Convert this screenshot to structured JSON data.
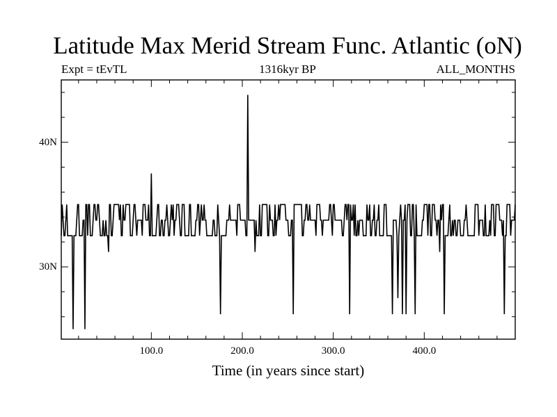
{
  "chart_data": {
    "type": "line",
    "title": "Latitude Max Merid Stream Func. Atlantic (oN)",
    "subtitle_left": "Expt = tEvTL",
    "subtitle_center": "1316kyr BP",
    "subtitle_right": "ALL_MONTHS",
    "xlabel": "Time (in years since start)",
    "ylabel": "",
    "xlim": [
      1,
      500
    ],
    "ylim": [
      24.2,
      45
    ],
    "x_ticks": [
      {
        "value": 100,
        "label": "100.0"
      },
      {
        "value": 200,
        "label": "200.0"
      },
      {
        "value": 300,
        "label": "300.0"
      },
      {
        "value": 400,
        "label": "400.0"
      }
    ],
    "x_minor_step": 20,
    "y_ticks": [
      {
        "value": 30,
        "label": "30N"
      },
      {
        "value": 40,
        "label": "40N"
      }
    ],
    "y_minor_step": 2,
    "levels": [
      32.5,
      33.75,
      35
    ],
    "spikes": [
      {
        "x": 14,
        "y": 25.0
      },
      {
        "x": 27,
        "y": 25.0
      },
      {
        "x": 53,
        "y": 31.2
      },
      {
        "x": 100,
        "y": 37.5
      },
      {
        "x": 176,
        "y": 26.2
      },
      {
        "x": 206,
        "y": 43.8
      },
      {
        "x": 214,
        "y": 31.2
      },
      {
        "x": 256,
        "y": 26.2
      },
      {
        "x": 318,
        "y": 26.2
      },
      {
        "x": 365,
        "y": 26.2
      },
      {
        "x": 371,
        "y": 27.5
      },
      {
        "x": 376,
        "y": 26.2
      },
      {
        "x": 380,
        "y": 26.2
      },
      {
        "x": 390,
        "y": 26.2
      },
      {
        "x": 417,
        "y": 31.2
      },
      {
        "x": 422,
        "y": 26.2
      },
      {
        "x": 488,
        "y": 26.2
      }
    ],
    "grid": false,
    "line_color": "#000000"
  }
}
